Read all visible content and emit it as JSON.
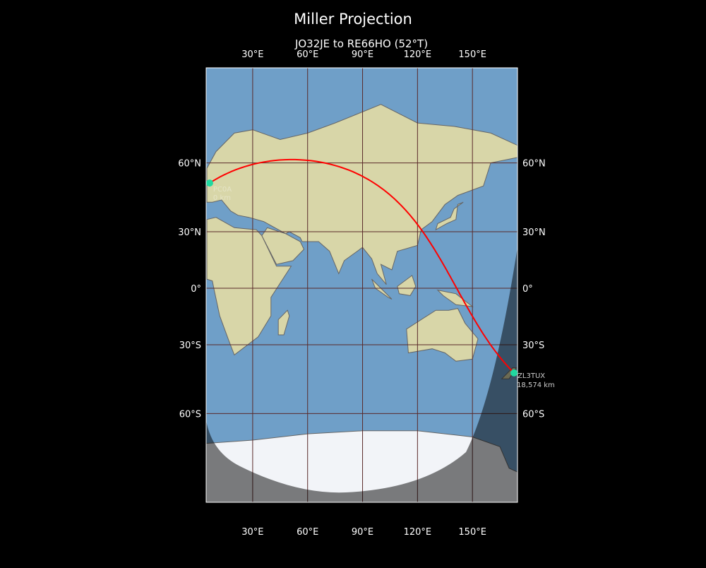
{
  "title": "Miller Projection",
  "subtitle": "JO32JE to RE66HO (52°T)",
  "map": {
    "projection": "Miller",
    "lon_range": [
      4.6,
      174.6
    ],
    "lat_range": [
      -85,
      86
    ],
    "lon_ticks": [
      {
        "value": 30,
        "label": "30°E"
      },
      {
        "value": 60,
        "label": "60°E"
      },
      {
        "value": 90,
        "label": "90°E"
      },
      {
        "value": 120,
        "label": "120°E"
      },
      {
        "value": 150,
        "label": "150°E"
      }
    ],
    "lat_ticks": [
      {
        "value": 60,
        "label": "60°N"
      },
      {
        "value": 30,
        "label": "30°N"
      },
      {
        "value": 0,
        "label": "0°"
      },
      {
        "value": -30,
        "label": "30°S"
      },
      {
        "value": -60,
        "label": "60°S"
      }
    ],
    "colors": {
      "ocean": "#6f9fc8",
      "land": "#d8d6a8",
      "ice": "#f2f4f8",
      "path": "#ff0000",
      "marker": "#20d8a0",
      "grid": "#5a2a2a",
      "night": "#000000"
    },
    "start": {
      "call": "PC0A",
      "distance": "0 km",
      "lon": 6.5,
      "lat": 52.2
    },
    "end": {
      "call": "ZL3TUX",
      "distance": "18,574 km",
      "lon": 172.7,
      "lat": -43.4
    }
  }
}
